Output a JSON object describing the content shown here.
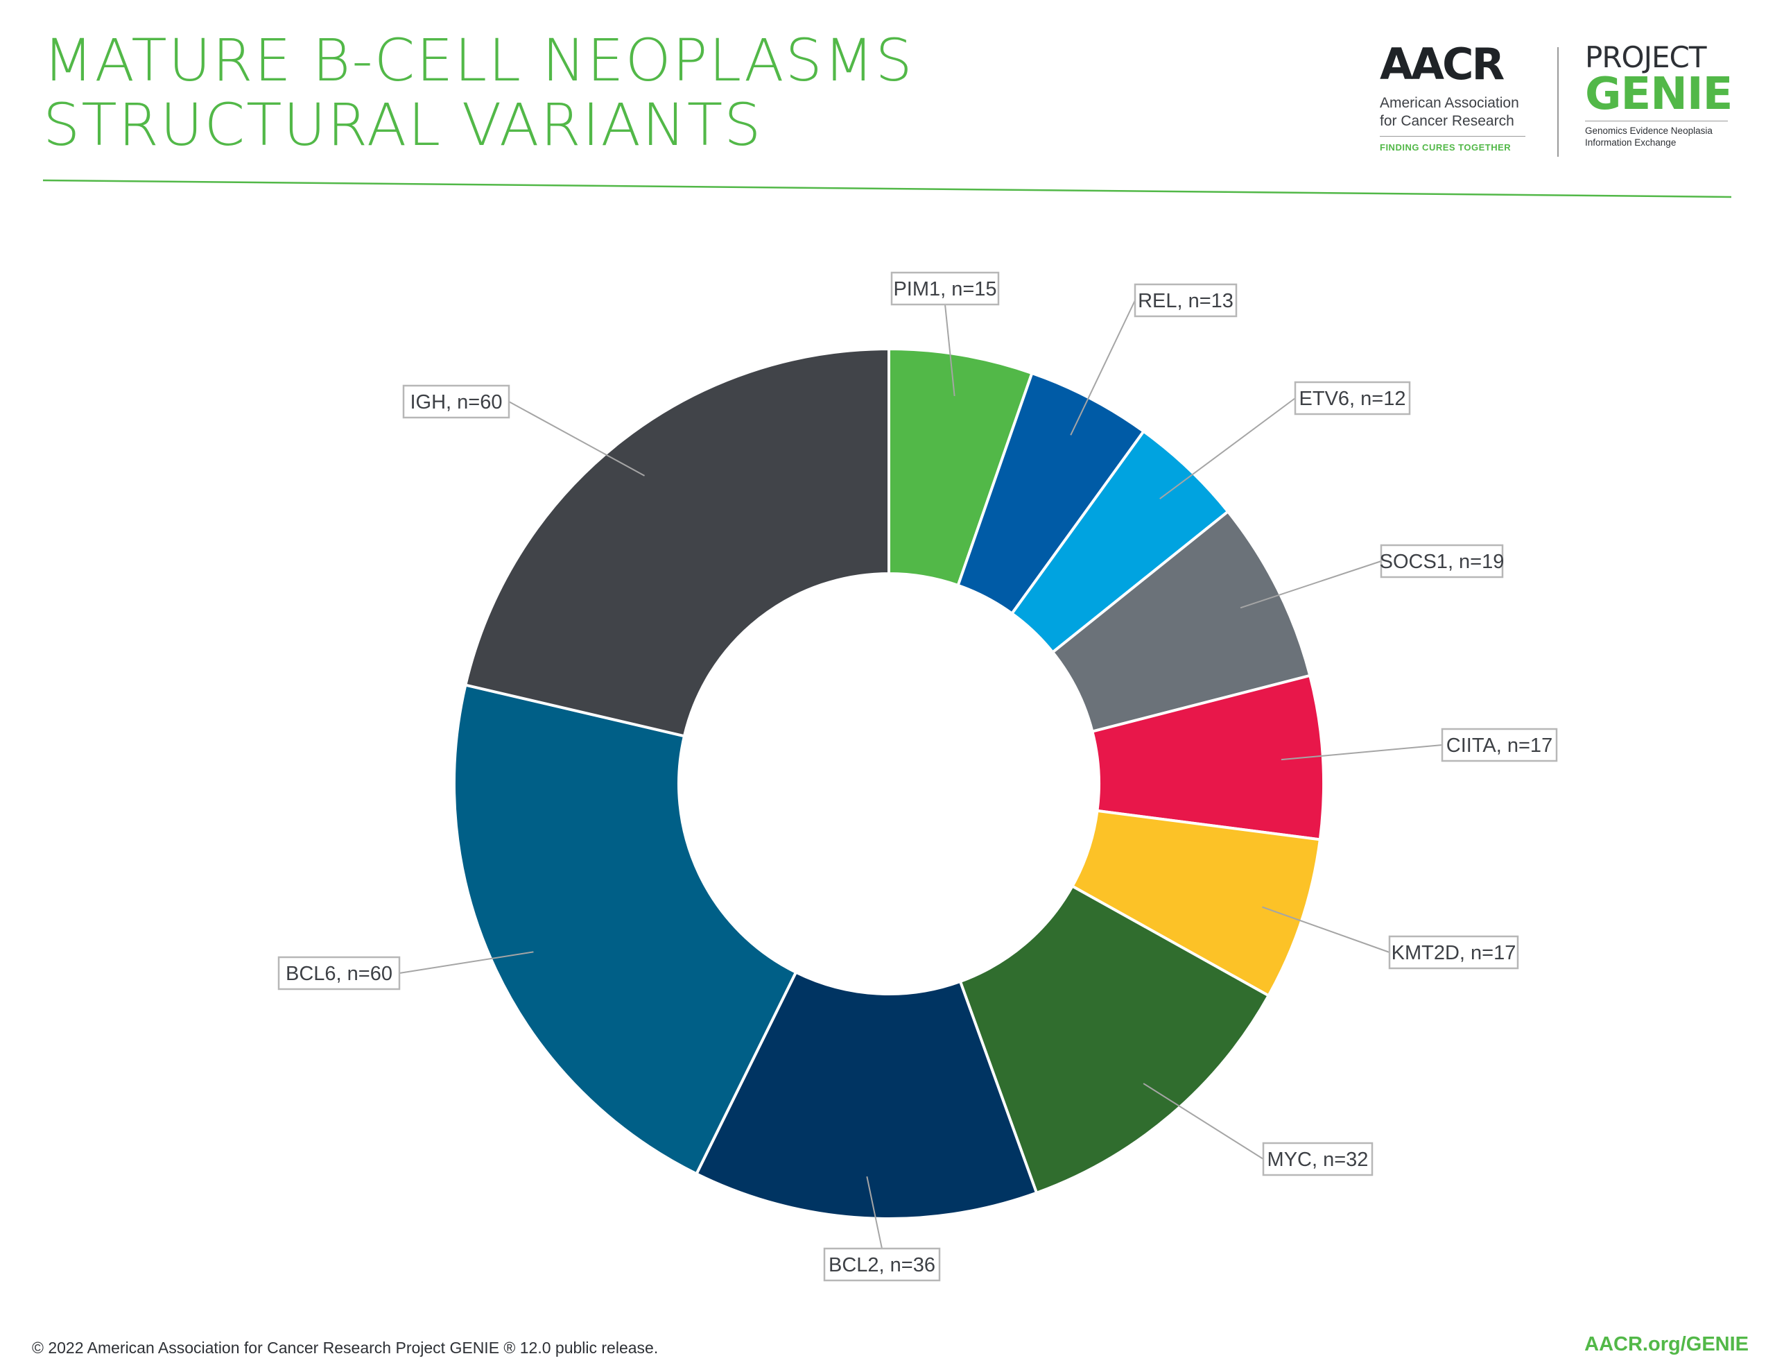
{
  "header": {
    "title_line1": "MATURE B-CELL NEOPLASMS",
    "title_line2": "STRUCTURAL VARIANTS"
  },
  "logos": {
    "aacr_word": "AACR",
    "aacr_name_line1": "American Association",
    "aacr_name_line2": "for Cancer Research",
    "aacr_tagline": "FINDING CURES TOGETHER",
    "genie_project": "PROJECT",
    "genie_word": "GENIE",
    "genie_sub_line1": "Genomics Evidence Neoplasia",
    "genie_sub_line2": "Information Exchange"
  },
  "footer": {
    "copyright": "© 2022 American Association for Cancer Research Project GENIE ® 12.0 public release.",
    "url": "AACR.org/GENIE"
  },
  "chart_data": {
    "type": "pie",
    "donut": true,
    "categories": [
      "PIM1",
      "REL",
      "ETV6",
      "SOCS1",
      "CIITA",
      "KMT2D",
      "MYC",
      "BCL2",
      "BCL6",
      "IGH"
    ],
    "values": [
      15,
      13,
      12,
      19,
      17,
      17,
      32,
      36,
      60,
      60
    ],
    "labels": [
      "PIM1, n=15",
      "REL, n=13",
      "ETV6, n=12",
      "SOCS1, n=19",
      "CIITA, n=17",
      "KMT2D, n=17",
      "MYC, n=32",
      "BCL2, n=36",
      "BCL6, n=60",
      "IGH, n=60"
    ],
    "colors": [
      "#52b848",
      "#005ba6",
      "#00a3e0",
      "#6b7279",
      "#e8174a",
      "#fcc227",
      "#306d2e",
      "#003462",
      "#005f87",
      "#414449"
    ],
    "start": "12 o'clock",
    "direction": "clockwise"
  }
}
